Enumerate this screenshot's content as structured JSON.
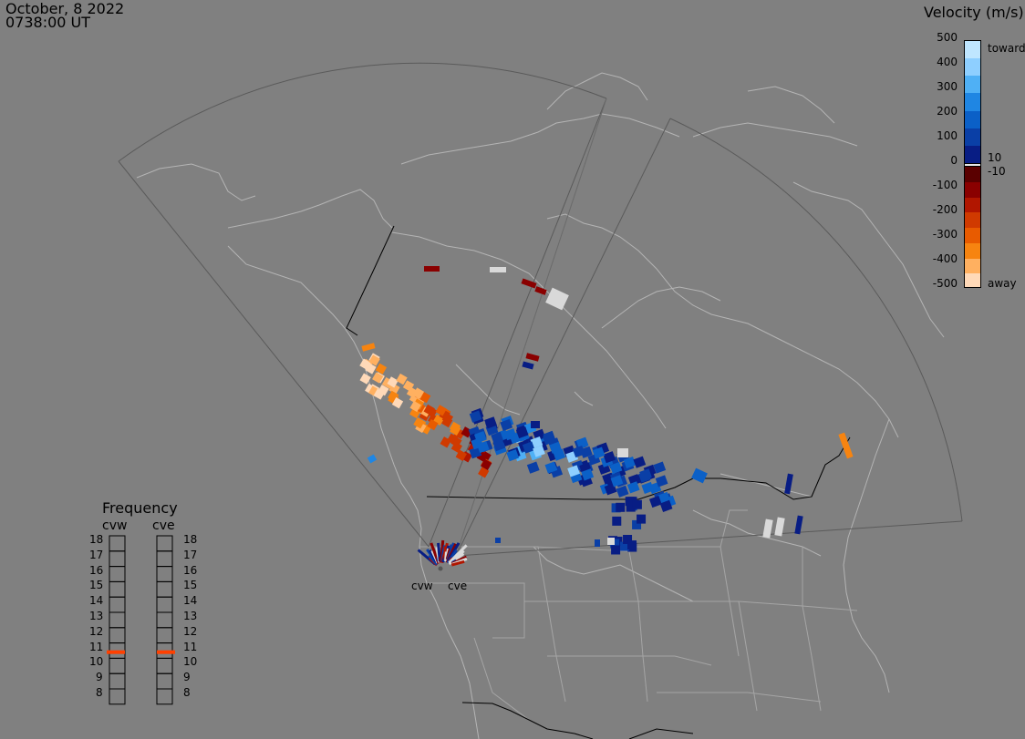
{
  "header": {
    "date": "October, 8 2022",
    "time": "0738:00 UT"
  },
  "legend": {
    "title": "Velocity (m/s)",
    "ticks": [
      "500",
      "400",
      "300",
      "200",
      "100",
      "0",
      "-100",
      "-200",
      "-300",
      "-400",
      "-500"
    ],
    "inner_labels": [
      "10",
      "-10"
    ],
    "end_labels": {
      "top": "toward",
      "bottom": "away"
    },
    "colors": [
      "#bfe6ff",
      "#8ecfff",
      "#4fb0f5",
      "#1f86e3",
      "#0b60c7",
      "#0a3fa6",
      "#081d84",
      "#5a0000",
      "#8a0000",
      "#b11600",
      "#d03a00",
      "#e85b00",
      "#f78410",
      "#ffb060",
      "#ffd9b8"
    ]
  },
  "frequency": {
    "title": "Frequency",
    "radars": [
      "cvw",
      "cve"
    ],
    "mhz": [
      "18",
      "17",
      "16",
      "15",
      "14",
      "13",
      "12",
      "11",
      "10",
      "9",
      "8"
    ],
    "current_value": 10.9,
    "marker_color": "#ff4000"
  },
  "map": {
    "radar_sites": [
      "cvw",
      "cve"
    ],
    "backscatter_colors": {
      "toward": [
        "#081d84",
        "#0a3fa6",
        "#0b60c7",
        "#1f86e3",
        "#4fb0f5",
        "#8ecfff"
      ],
      "away": [
        "#8a0000",
        "#b11600",
        "#d03a00",
        "#e85b00",
        "#f78410",
        "#ffb060",
        "#ffd9b8"
      ],
      "ground": "#d9d9d9"
    }
  }
}
